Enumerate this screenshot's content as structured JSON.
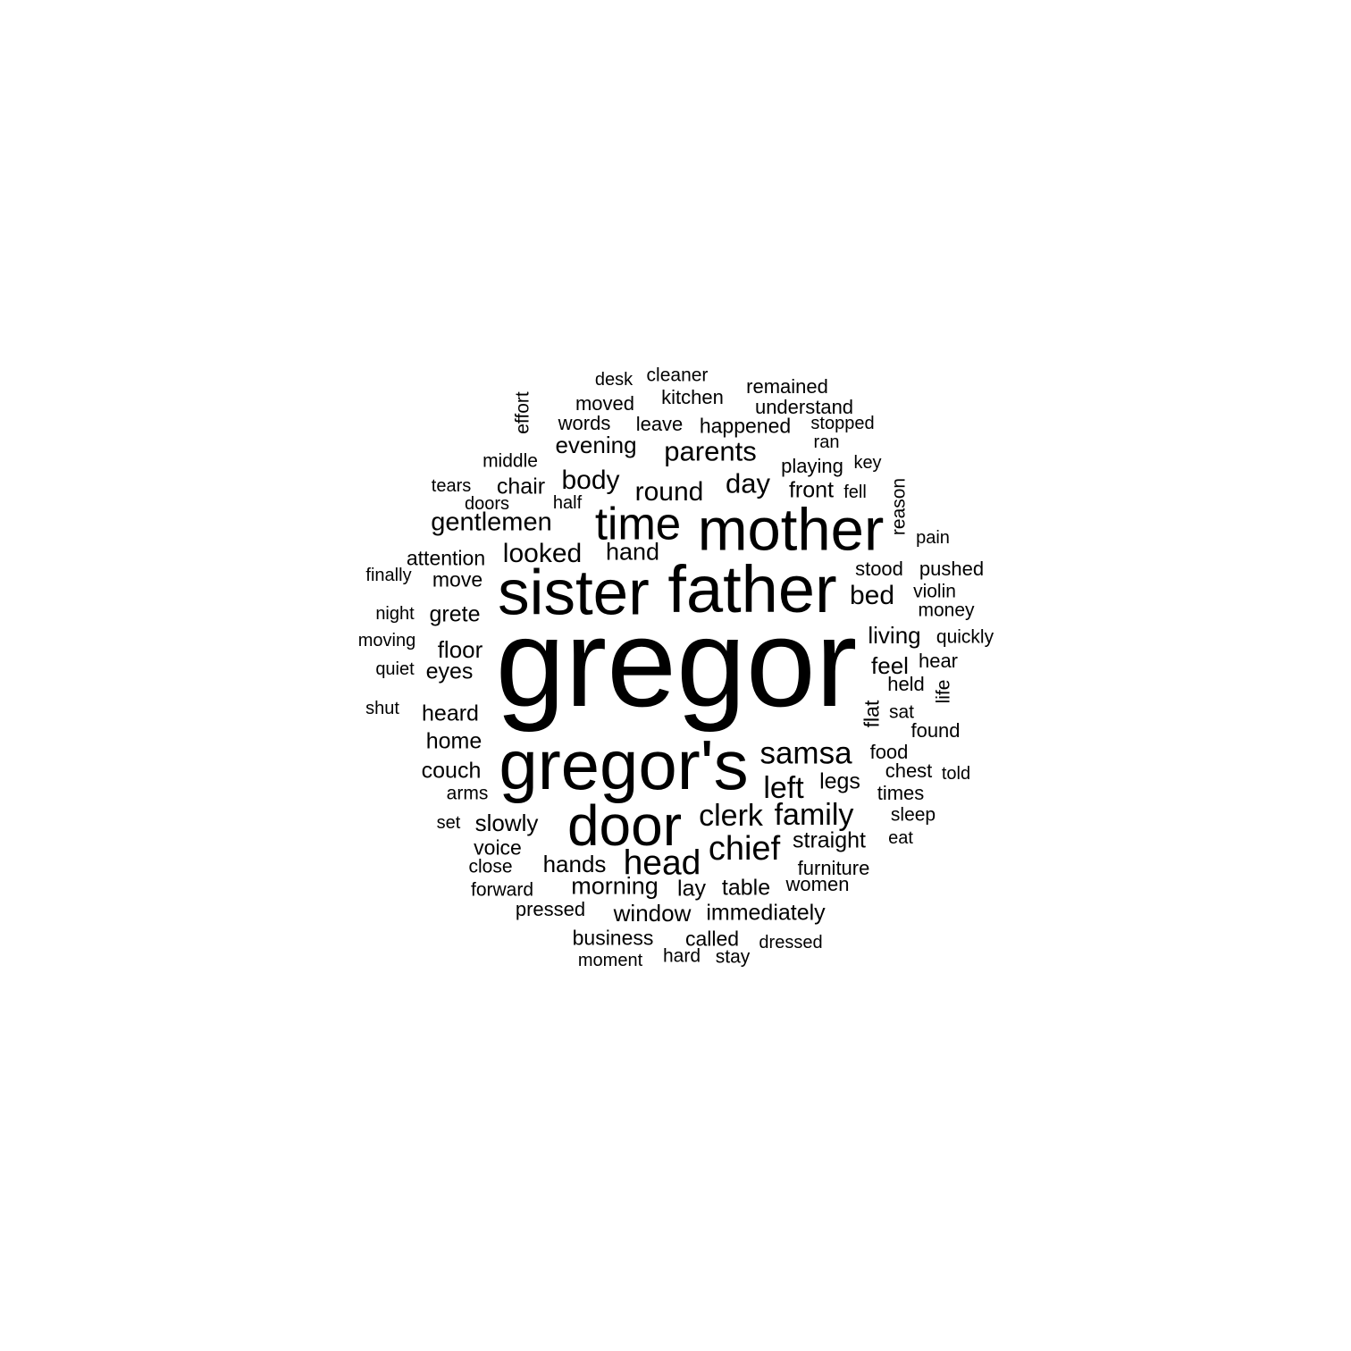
{
  "words": [
    {
      "text": "gregor",
      "weight": 1.0
    },
    {
      "text": "gregor's",
      "weight": 0.56
    },
    {
      "text": "father",
      "weight": 0.52
    },
    {
      "text": "sister",
      "weight": 0.5
    },
    {
      "text": "mother",
      "weight": 0.48
    },
    {
      "text": "door",
      "weight": 0.45
    },
    {
      "text": "time",
      "weight": 0.36
    },
    {
      "text": "head",
      "weight": 0.28
    },
    {
      "text": "chief",
      "weight": 0.27
    },
    {
      "text": "samsa",
      "weight": 0.25
    },
    {
      "text": "clerk",
      "weight": 0.24
    },
    {
      "text": "family",
      "weight": 0.24
    },
    {
      "text": "left",
      "weight": 0.24
    },
    {
      "text": "parents",
      "weight": 0.22
    },
    {
      "text": "day",
      "weight": 0.22
    },
    {
      "text": "body",
      "weight": 0.21
    },
    {
      "text": "looked",
      "weight": 0.21
    },
    {
      "text": "round",
      "weight": 0.21
    },
    {
      "text": "bed",
      "weight": 0.21
    },
    {
      "text": "gentlemen",
      "weight": 0.2
    },
    {
      "text": "morning",
      "weight": 0.19
    },
    {
      "text": "hand",
      "weight": 0.19
    },
    {
      "text": "window",
      "weight": 0.18
    },
    {
      "text": "evening",
      "weight": 0.18
    },
    {
      "text": "floor",
      "weight": 0.18
    },
    {
      "text": "living",
      "weight": 0.18
    },
    {
      "text": "feel",
      "weight": 0.18
    },
    {
      "text": "slowly",
      "weight": 0.18
    },
    {
      "text": "hands",
      "weight": 0.18
    },
    {
      "text": "immediately",
      "weight": 0.17
    },
    {
      "text": "straight",
      "weight": 0.17
    },
    {
      "text": "chair",
      "weight": 0.17
    },
    {
      "text": "front",
      "weight": 0.17
    },
    {
      "text": "grete",
      "weight": 0.17
    },
    {
      "text": "eyes",
      "weight": 0.17
    },
    {
      "text": "heard",
      "weight": 0.17
    },
    {
      "text": "home",
      "weight": 0.17
    },
    {
      "text": "couch",
      "weight": 0.17
    },
    {
      "text": "legs",
      "weight": 0.17
    },
    {
      "text": "table",
      "weight": 0.17
    },
    {
      "text": "lay",
      "weight": 0.17
    },
    {
      "text": "happened",
      "weight": 0.16
    },
    {
      "text": "attention",
      "weight": 0.16
    },
    {
      "text": "move",
      "weight": 0.16
    },
    {
      "text": "voice",
      "weight": 0.16
    },
    {
      "text": "business",
      "weight": 0.16
    },
    {
      "text": "called",
      "weight": 0.16
    },
    {
      "text": "flat",
      "weight": 0.16
    },
    {
      "text": "furniture",
      "weight": 0.15
    },
    {
      "text": "playing",
      "weight": 0.15
    },
    {
      "text": "understand",
      "weight": 0.15
    },
    {
      "text": "remained",
      "weight": 0.15
    },
    {
      "text": "moved",
      "weight": 0.15
    },
    {
      "text": "words",
      "weight": 0.15
    },
    {
      "text": "leave",
      "weight": 0.15
    },
    {
      "text": "kitchen",
      "weight": 0.15
    },
    {
      "text": "held",
      "weight": 0.15
    },
    {
      "text": "found",
      "weight": 0.15
    },
    {
      "text": "hear",
      "weight": 0.15
    },
    {
      "text": "pushed",
      "weight": 0.15
    },
    {
      "text": "stood",
      "weight": 0.15
    },
    {
      "text": "times",
      "weight": 0.15
    },
    {
      "text": "chest",
      "weight": 0.15
    },
    {
      "text": "food",
      "weight": 0.15
    },
    {
      "text": "women",
      "weight": 0.15
    },
    {
      "text": "pressed",
      "weight": 0.15
    },
    {
      "text": "arms",
      "weight": 0.14
    },
    {
      "text": "middle",
      "weight": 0.14
    },
    {
      "text": "cleaner",
      "weight": 0.14
    },
    {
      "text": "effort",
      "weight": 0.14
    },
    {
      "text": "reason",
      "weight": 0.14
    },
    {
      "text": "violin",
      "weight": 0.14
    },
    {
      "text": "money",
      "weight": 0.14
    },
    {
      "text": "quickly",
      "weight": 0.14
    },
    {
      "text": "sleep",
      "weight": 0.14
    },
    {
      "text": "forward",
      "weight": 0.14
    },
    {
      "text": "close",
      "weight": 0.14
    },
    {
      "text": "sat",
      "weight": 0.14
    },
    {
      "text": "life",
      "weight": 0.14
    },
    {
      "text": "stay",
      "weight": 0.14
    },
    {
      "text": "hard",
      "weight": 0.14
    },
    {
      "text": "stopped",
      "weight": 0.13
    },
    {
      "text": "tears",
      "weight": 0.13
    },
    {
      "text": "doors",
      "weight": 0.13
    },
    {
      "text": "half",
      "weight": 0.13
    },
    {
      "text": "finally",
      "weight": 0.13
    },
    {
      "text": "night",
      "weight": 0.13
    },
    {
      "text": "moving",
      "weight": 0.13
    },
    {
      "text": "quiet",
      "weight": 0.13
    },
    {
      "text": "shut",
      "weight": 0.13
    },
    {
      "text": "set",
      "weight": 0.13
    },
    {
      "text": "desk",
      "weight": 0.13
    },
    {
      "text": "ran",
      "weight": 0.13
    },
    {
      "text": "key",
      "weight": 0.13
    },
    {
      "text": "fell",
      "weight": 0.13
    },
    {
      "text": "pain",
      "weight": 0.13
    },
    {
      "text": "told",
      "weight": 0.13
    },
    {
      "text": "eat",
      "weight": 0.13
    },
    {
      "text": "dressed",
      "weight": 0.13
    },
    {
      "text": "moment",
      "weight": 0.13
    }
  ]
}
